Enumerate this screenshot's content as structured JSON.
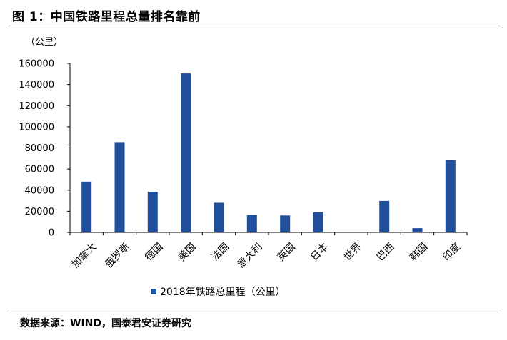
{
  "figure": {
    "title": "图 1：中国铁路里程总量排名靠前",
    "source": "数据来源：WIND，国泰君安证券研究"
  },
  "chart_data": {
    "type": "bar",
    "unit_label": "（公里）",
    "categories": [
      "加拿大",
      "俄罗斯",
      "德国",
      "美国",
      "法国",
      "意大利",
      "英国",
      "日本",
      "世界",
      "巴西",
      "韩国",
      "印度"
    ],
    "series": [
      {
        "name": "2018年铁路总里程（公里）",
        "values": [
          48000,
          85500,
          38500,
          150500,
          28000,
          16500,
          16000,
          19000,
          0,
          29800,
          4000,
          68500
        ],
        "color": "#1f4e9c"
      }
    ],
    "yticks": [
      "0",
      "20000",
      "40000",
      "60000",
      "80000",
      "100000",
      "120000",
      "140000",
      "160000"
    ],
    "ylim": [
      0,
      160000
    ],
    "grid": false,
    "legend_position": "bottom"
  }
}
